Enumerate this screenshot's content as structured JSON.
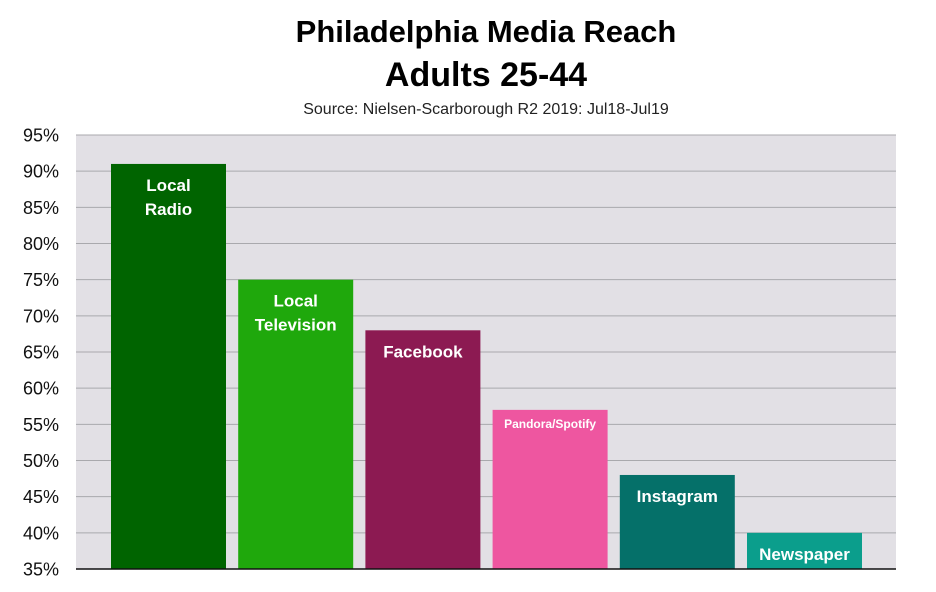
{
  "chart_data": {
    "type": "bar",
    "title": "Philadelphia Media Reach",
    "subtitle": "Adults 25-44",
    "source": "Source: Nielsen-Scarborough R2 2019:  Jul18-Jul19",
    "xlabel": "",
    "ylabel": "",
    "ylim": [
      35,
      95
    ],
    "y_ticks": [
      "35%",
      "40%",
      "45%",
      "50%",
      "55%",
      "60%",
      "65%",
      "70%",
      "75%",
      "80%",
      "85%",
      "90%",
      "95%"
    ],
    "grid": true,
    "categories": [
      [
        "Local",
        "Radio"
      ],
      [
        "Local",
        "Television"
      ],
      [
        "Facebook"
      ],
      [
        "Pandora/Spotify"
      ],
      [
        "Instagram"
      ],
      [
        "Newspaper"
      ]
    ],
    "values": [
      91,
      75,
      68,
      57,
      48,
      40
    ],
    "colors": [
      "#006400",
      "#1fa80c",
      "#8c1a52",
      "#ee56a0",
      "#057069",
      "#0b9e8c"
    ]
  }
}
